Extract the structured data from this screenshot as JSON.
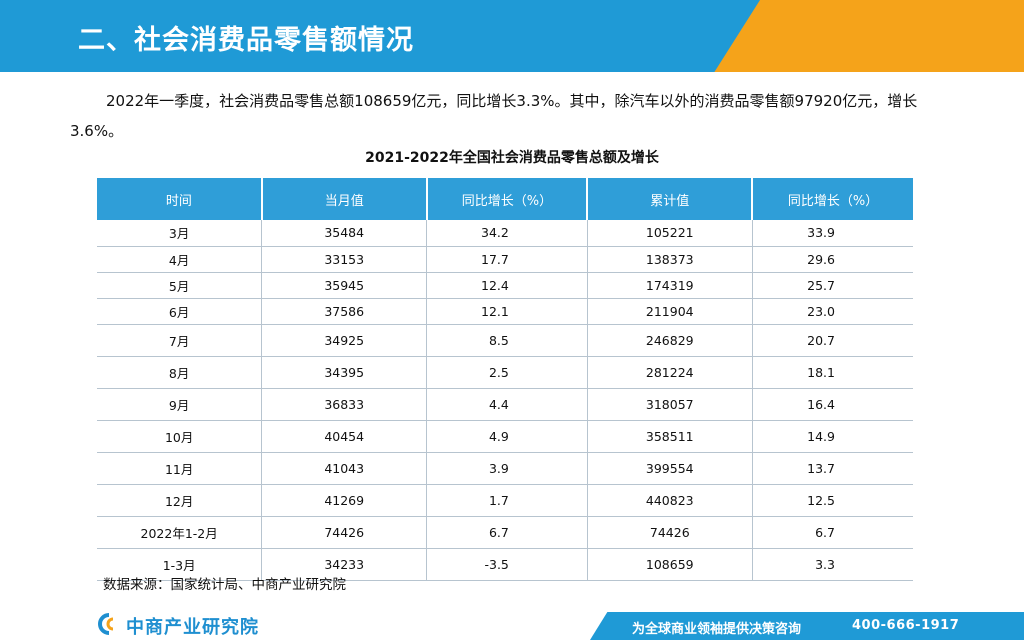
{
  "header": {
    "title": "二、社会消费品零售额情况"
  },
  "intro": {
    "text": "2022年一季度，社会消费品零售总额108659亿元，同比增长3.3%。其中，除汽车以外的消费品零售额97920亿元，增长3.6%。"
  },
  "table": {
    "title": "2021-2022年全国社会消费品零售总额及增长",
    "headers": [
      "时间",
      "当月值",
      "同比增长（%）",
      "累计值",
      "同比增长（%）"
    ],
    "rows": [
      [
        "3月",
        "35484",
        "34.2",
        "105221",
        "33.9"
      ],
      [
        "4月",
        "33153",
        "17.7",
        "138373",
        "29.6"
      ],
      [
        "5月",
        "35945",
        "12.4",
        "174319",
        "25.7"
      ],
      [
        "6月",
        "37586",
        "12.1",
        "211904",
        "23.0"
      ],
      [
        "7月",
        "34925",
        "8.5",
        "246829",
        "20.7"
      ],
      [
        "8月",
        "34395",
        "2.5",
        "281224",
        "18.1"
      ],
      [
        "9月",
        "36833",
        "4.4",
        "318057",
        "16.4"
      ],
      [
        "10月",
        "40454",
        "4.9",
        "358511",
        "14.9"
      ],
      [
        "11月",
        "41043",
        "3.9",
        "399554",
        "13.7"
      ],
      [
        "12月",
        "41269",
        "1.7",
        "440823",
        "12.5"
      ],
      [
        "2022年1-2月",
        "74426",
        "6.7",
        "74426",
        "6.7"
      ],
      [
        "1-3月",
        "34233",
        "-3.5",
        "108659",
        "3.3"
      ]
    ]
  },
  "source": {
    "text": "数据来源：国家统计局、中商产业研究院"
  },
  "footer": {
    "logo_text": "中商产业研究院",
    "slogan": "为全球商业领袖提供决策咨询",
    "phone": "400-666-1917"
  },
  "colors": {
    "header_blue": "#1f9ad6",
    "header_orange": "#f5a31a",
    "table_header": "#2f9ed8"
  },
  "icons": {
    "logo": "cc-logo-icon"
  }
}
